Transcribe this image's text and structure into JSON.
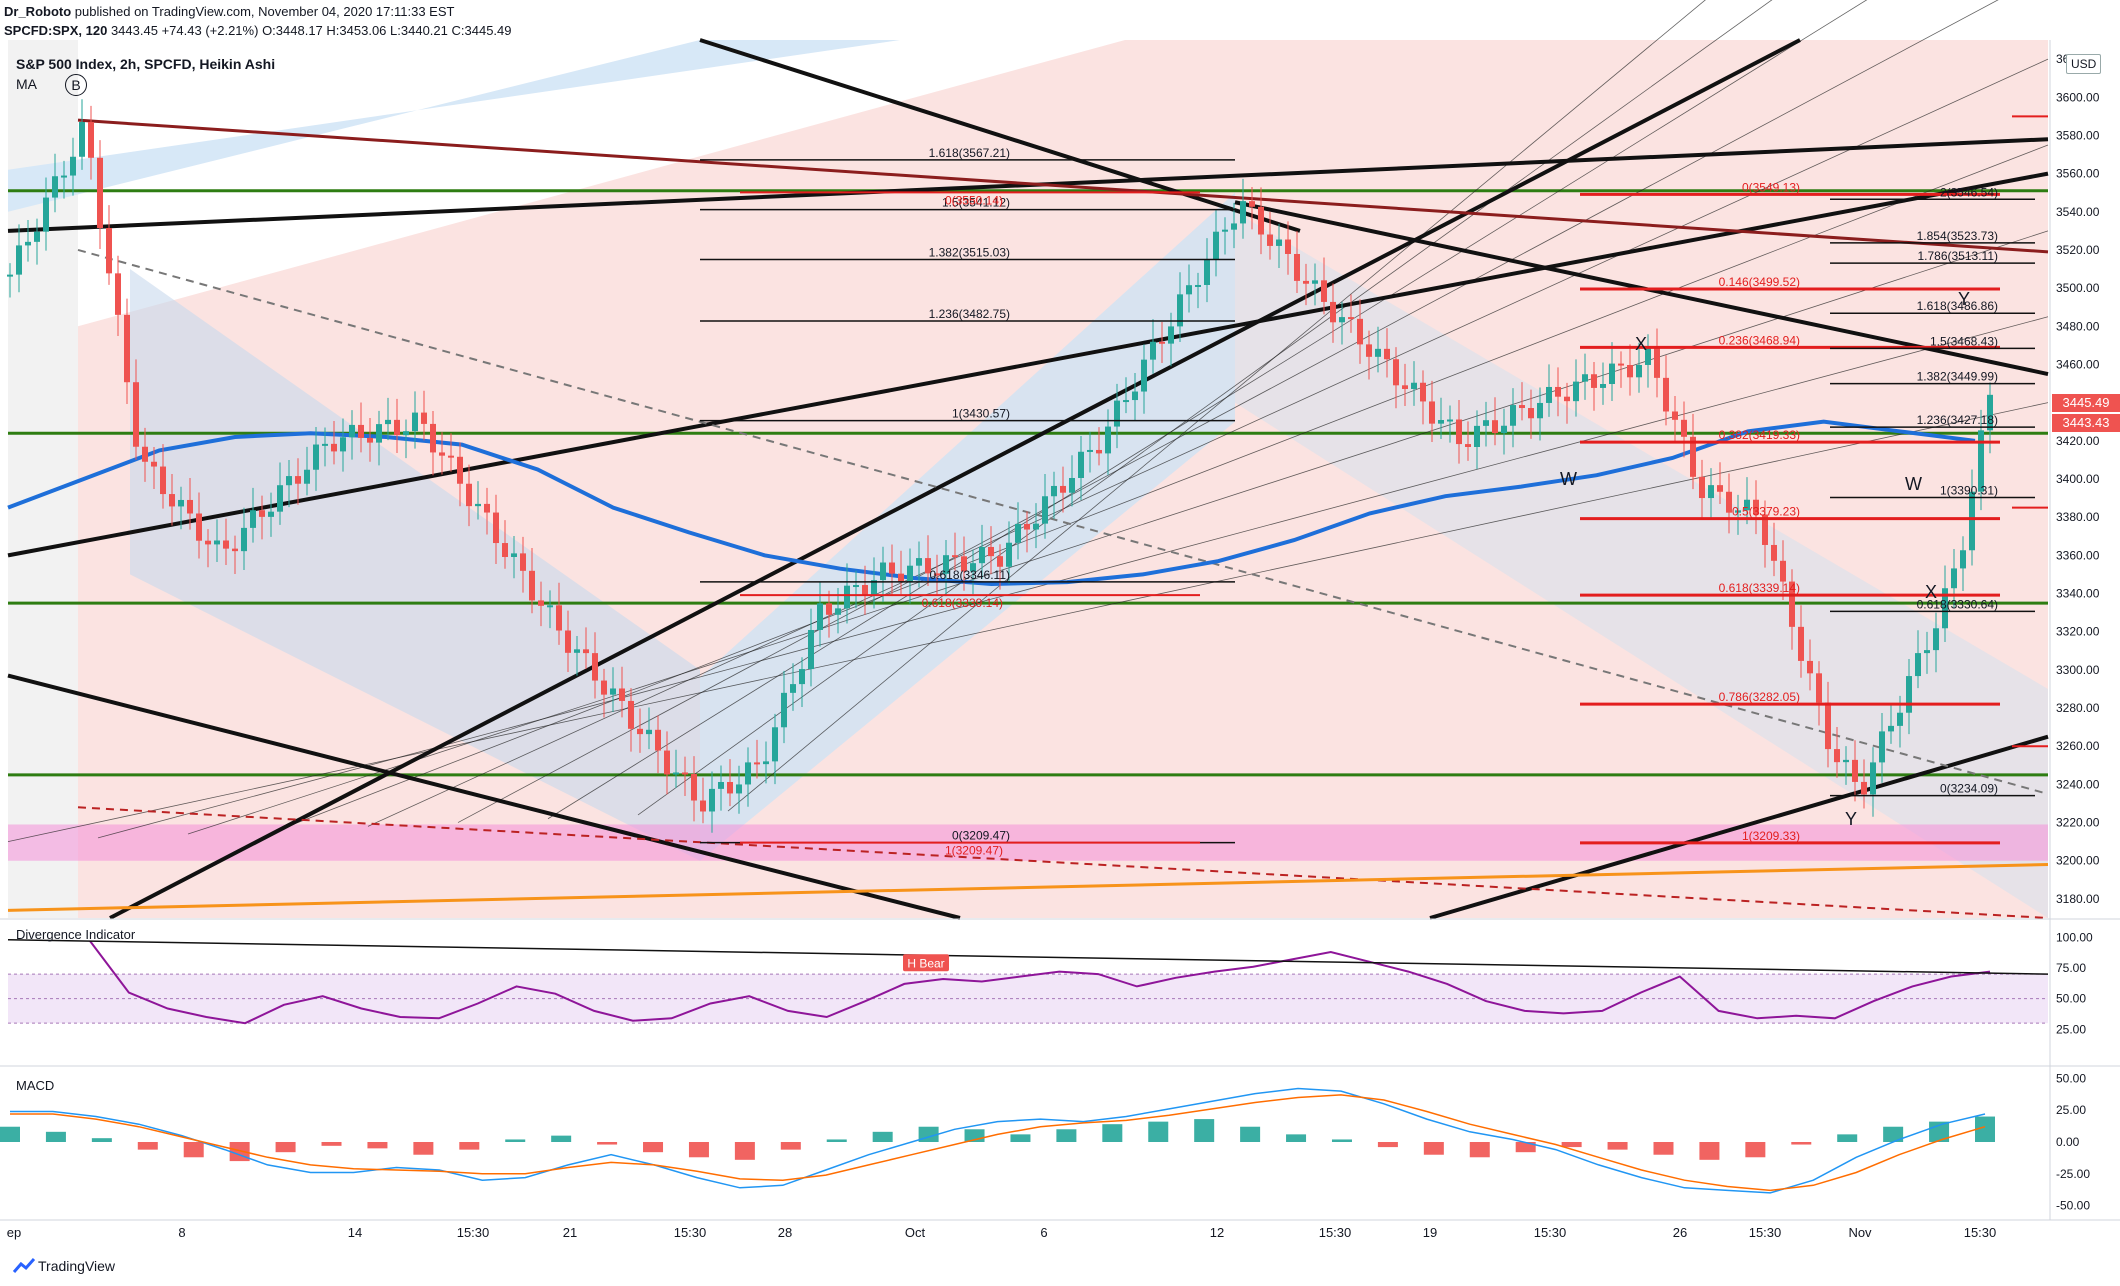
{
  "header": {
    "author": "Dr_Roboto",
    "published_text": "published on TradingView.com, November 04, 2020 17:11:33 EST",
    "symbol": "SPCFD:SPX, 120",
    "last": "3443.45",
    "change": "+74.43 (+2.21%)",
    "ohlc": {
      "open": "O:3448.17",
      "high": "H:3453.06",
      "low": "L:3440.21",
      "close": "C:3445.49"
    }
  },
  "legend": {
    "title": "S&P 500 Index, 2h, SPCFD, Heikin Ashi",
    "ma": "MA",
    "badge": "B"
  },
  "price_axis": {
    "currency": "USD",
    "last_label": "3445.49",
    "second_label": "3443.43"
  },
  "footer": {
    "brand": "TradingView"
  },
  "colors": {
    "bull": "#26a69a",
    "bear": "#ef5350",
    "ma": "#1e6fd9",
    "green_line": "#2e7d12",
    "pink_zone": "#f48fd8",
    "orange": "#f7931a",
    "rsi": "#8e1599"
  },
  "chart_data": [
    {
      "type": "candlestick",
      "title": "S&P 500 Index, 2h, SPCFD, Heikin Ashi",
      "xlabel": "",
      "ylabel": "",
      "ylim": [
        3170,
        3630
      ],
      "y_ticks": [
        3180,
        3200,
        3220,
        3240,
        3260,
        3280,
        3300,
        3320,
        3340,
        3360,
        3380,
        3400,
        3420,
        3440,
        3460,
        3480,
        3500,
        3520,
        3540,
        3560,
        3580,
        3600,
        3620
      ],
      "x_ticks": [
        "ep",
        "8",
        "14",
        "15:30",
        "21",
        "15:30",
        "28",
        "Oct",
        "6",
        "12",
        "15:30",
        "19",
        "15:30",
        "26",
        "15:30",
        "Nov",
        "15:30"
      ],
      "series": [
        {
          "name": "MA",
          "values": [
            3385,
            3400,
            3415,
            3422,
            3424,
            3422,
            3418,
            3405,
            3385,
            3372,
            3360,
            3353,
            3348,
            3345,
            3346,
            3350,
            3357,
            3368,
            3382,
            3391,
            3396,
            3402,
            3411,
            3425,
            3430,
            3425,
            3420
          ]
        }
      ],
      "horizontal_levels": [
        3551,
        3424,
        3335,
        3245
      ],
      "zone": [
        3200,
        3219
      ],
      "fib_left": [
        {
          "label": "1.618(3567.21)",
          "value": 3567.21
        },
        {
          "label": "1.5(3541.12)",
          "value": 3541.12
        },
        {
          "label": "1.382(3515.03)",
          "value": 3515.03
        },
        {
          "label": "1.236(3482.75)",
          "value": 3482.75
        },
        {
          "label": "1(3430.57)",
          "value": 3430.57
        },
        {
          "label": "0.618(3346.11)",
          "value": 3346.11
        },
        {
          "label": "0(3209.47)",
          "value": 3209.47
        }
      ],
      "fib_left_red": [
        {
          "label": "0(3550.14)",
          "value": 3550.14
        },
        {
          "label": "0.618(3339.14)",
          "value": 3339.14
        },
        {
          "label": "1(3209.47)",
          "value": 3209.47
        }
      ],
      "fib_right_red": [
        {
          "label": "0(3549.13)",
          "value": 3549.13
        },
        {
          "label": "0.146(3499.52)",
          "value": 3499.52
        },
        {
          "label": "0.236(3468.94)",
          "value": 3468.94
        },
        {
          "label": "0.382(3419.33)",
          "value": 3419.33
        },
        {
          "label": "0.5(3379.23)",
          "value": 3379.23
        },
        {
          "label": "0.618(3339.14)",
          "value": 3339.14
        },
        {
          "label": "0.786(3282.05)",
          "value": 3282.05
        },
        {
          "label": "1(3209.33)",
          "value": 3209.33
        }
      ],
      "fib_right_black": [
        {
          "label": "2(3546.54)",
          "value": 3546.54
        },
        {
          "label": "1.854(3523.73)",
          "value": 3523.73
        },
        {
          "label": "1.786(3513.11)",
          "value": 3513.11
        },
        {
          "label": "1.618(3486.86)",
          "value": 3486.86
        },
        {
          "label": "1.5(3468.43)",
          "value": 3468.43
        },
        {
          "label": "1.382(3449.99)",
          "value": 3449.99
        },
        {
          "label": "1.236(3427.18)",
          "value": 3427.18
        },
        {
          "label": "1(3390.31)",
          "value": 3390.31
        },
        {
          "label": "0.618(3330.64)",
          "value": 3330.64
        },
        {
          "label": "0(3234.09)",
          "value": 3234.09
        }
      ],
      "annotations": [
        "X",
        "W",
        "Y",
        "W",
        "X",
        "Y"
      ]
    },
    {
      "type": "line",
      "title": "Divergence Indicator",
      "xlabel": "",
      "ylabel": "",
      "ylim": [
        0,
        110
      ],
      "y_ticks": [
        25,
        50,
        75,
        100
      ],
      "band": [
        30,
        70
      ],
      "annotations": [
        "H Bear"
      ],
      "series": [
        {
          "name": "",
          "values": [
            97,
            55,
            42,
            35,
            30,
            45,
            52,
            42,
            35,
            34,
            46,
            60,
            54,
            40,
            32,
            34,
            46,
            52,
            40,
            35,
            48,
            62,
            66,
            64,
            68,
            72,
            70,
            60,
            67,
            72,
            76,
            82,
            88,
            80,
            72,
            62,
            48,
            40,
            38,
            40,
            55,
            68,
            40,
            34,
            36,
            34,
            48,
            60,
            68,
            72
          ]
        }
      ]
    },
    {
      "type": "bar",
      "title": "MACD",
      "xlabel": "",
      "ylabel": "",
      "ylim": [
        -55,
        55
      ],
      "y_ticks": [
        -50,
        -25,
        0,
        25,
        50
      ],
      "series": [
        {
          "name": "",
          "values": [
            12,
            8,
            3,
            -6,
            -12,
            -15,
            -8,
            -3,
            -5,
            -10,
            -6,
            2,
            5,
            -2,
            -8,
            -12,
            -14,
            -6,
            2,
            8,
            12,
            10,
            6,
            10,
            14,
            16,
            18,
            12,
            6,
            2,
            -4,
            -10,
            -12,
            -8,
            -4,
            -6,
            -10,
            -14,
            -12,
            -2,
            6,
            12,
            16,
            20
          ]
        },
        {
          "name": "",
          "values": [
            24,
            24,
            20,
            14,
            5,
            -6,
            -18,
            -24,
            -24,
            -20,
            -22,
            -30,
            -28,
            -18,
            -10,
            -18,
            -28,
            -36,
            -34,
            -22,
            -10,
            0,
            10,
            16,
            18,
            16,
            20,
            26,
            32,
            38,
            42,
            40,
            30,
            18,
            8,
            2,
            -6,
            -18,
            -28,
            -36,
            -38,
            -40,
            -30,
            -12,
            2,
            14,
            22
          ]
        },
        {
          "name": "",
          "values": [
            22,
            22,
            18,
            12,
            4,
            -4,
            -12,
            -18,
            -21,
            -22,
            -23,
            -25,
            -25,
            -20,
            -16,
            -18,
            -23,
            -29,
            -30,
            -26,
            -18,
            -10,
            -2,
            6,
            12,
            15,
            17,
            21,
            26,
            31,
            35,
            37,
            33,
            24,
            14,
            6,
            -2,
            -12,
            -22,
            -30,
            -35,
            -38,
            -34,
            -24,
            -10,
            2,
            12
          ]
        }
      ]
    }
  ]
}
